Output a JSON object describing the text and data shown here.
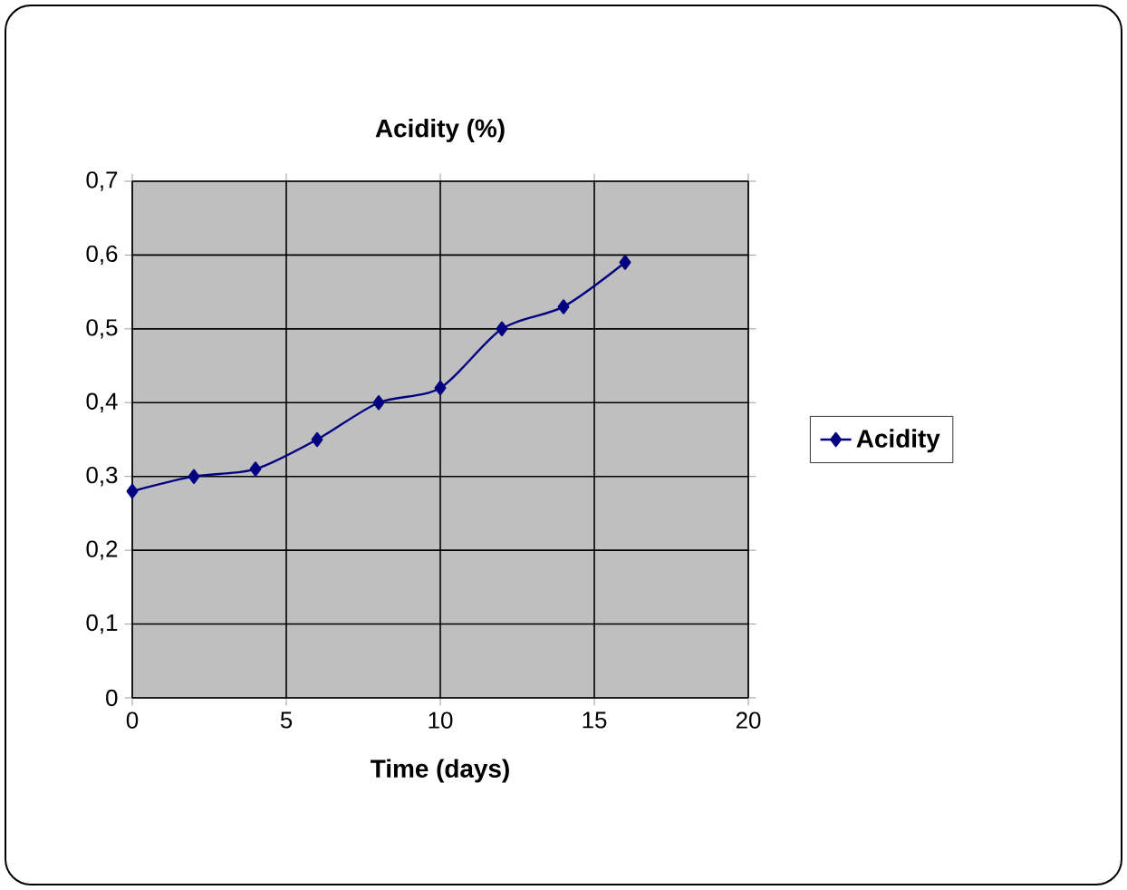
{
  "chart_data": {
    "type": "line",
    "title": "Acidity (%)",
    "xlabel": "Time (days)",
    "x": [
      0,
      2,
      4,
      6,
      8,
      10,
      12,
      14,
      16
    ],
    "series": [
      {
        "name": "Acidity",
        "color": "#000080",
        "values": [
          0.28,
          0.3,
          0.31,
          0.35,
          0.4,
          0.42,
          0.5,
          0.53,
          0.59
        ]
      }
    ],
    "xlim": [
      0,
      20
    ],
    "xticks": [
      0,
      5,
      10,
      15,
      20
    ],
    "ylim": [
      0,
      0.7
    ],
    "yticks": [
      {
        "value": 0,
        "label": "0"
      },
      {
        "value": 0.1,
        "label": "0,1"
      },
      {
        "value": 0.2,
        "label": "0,2"
      },
      {
        "value": 0.3,
        "label": "0,3"
      },
      {
        "value": 0.4,
        "label": "0,4"
      },
      {
        "value": 0.5,
        "label": "0,5"
      },
      {
        "value": 0.6,
        "label": "0,6"
      },
      {
        "value": 0.7,
        "label": "0,7"
      }
    ],
    "grid": true,
    "legend": "right",
    "marker": "diamond",
    "line_style": "solid"
  }
}
